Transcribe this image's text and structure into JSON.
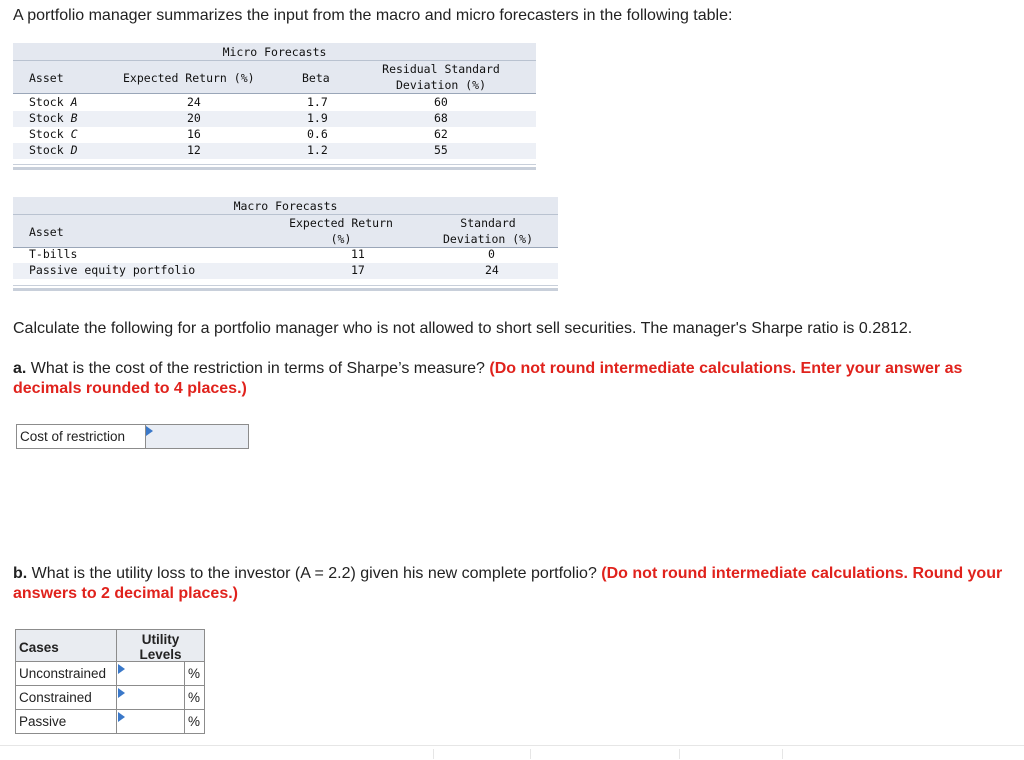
{
  "intro": "A portfolio manager summarizes the input from the macro and micro forecasters in the following table:",
  "micro": {
    "title": "Micro Forecasts",
    "headers": {
      "asset": "Asset",
      "expected_return": "Expected Return (%)",
      "beta": "Beta",
      "resid_line1": "Residual Standard",
      "resid_line2": "Deviation (%)"
    },
    "rows": [
      {
        "asset_prefix": "Stock",
        "asset_letter": "A",
        "er": "24",
        "beta": "1.7",
        "sd": "60"
      },
      {
        "asset_prefix": "Stock",
        "asset_letter": "B",
        "er": "20",
        "beta": "1.9",
        "sd": "68"
      },
      {
        "asset_prefix": "Stock",
        "asset_letter": "C",
        "er": "16",
        "beta": "0.6",
        "sd": "62"
      },
      {
        "asset_prefix": "Stock",
        "asset_letter": "D",
        "er": "12",
        "beta": "1.2",
        "sd": "55"
      }
    ]
  },
  "macro": {
    "title": "Macro Forecasts",
    "headers": {
      "asset": "Asset",
      "er_line1": "Expected Return",
      "er_line2": "(%)",
      "sd_line1": "Standard",
      "sd_line2": "Deviation (%)"
    },
    "rows": [
      {
        "asset": "T-bills",
        "er": "11",
        "sd": "0"
      },
      {
        "asset": "Passive equity portfolio",
        "er": "17",
        "sd": "24"
      }
    ]
  },
  "instruction": "Calculate the following for a portfolio manager who is not allowed to short sell securities. The manager's Sharpe ratio is 0.2812.",
  "part_a": {
    "label": "a.",
    "question": "What is the cost of the restriction in terms of Sharpe’s measure?",
    "note": "(Do not round intermediate calculations. Enter your answer as decimals rounded to 4 places.)",
    "field_label": "Cost of restriction",
    "field_value": ""
  },
  "part_b": {
    "label": "b.",
    "question": "What is the utility loss to the investor (A = 2.2) given his new complete portfolio?",
    "note": "(Do not round intermediate calculations. Round your answers to 2 decimal places.)",
    "col_cases": "Cases",
    "col_util_line1": "Utility",
    "col_util_line2": "Levels",
    "unit": "%",
    "rows": [
      {
        "case": "Unconstrained",
        "value": ""
      },
      {
        "case": "Constrained",
        "value": ""
      },
      {
        "case": "Passive",
        "value": ""
      }
    ]
  },
  "colors": {
    "accent_red": "#e0221c",
    "input_flag": "#3a78c9",
    "table_band": "#e4e8f0"
  }
}
